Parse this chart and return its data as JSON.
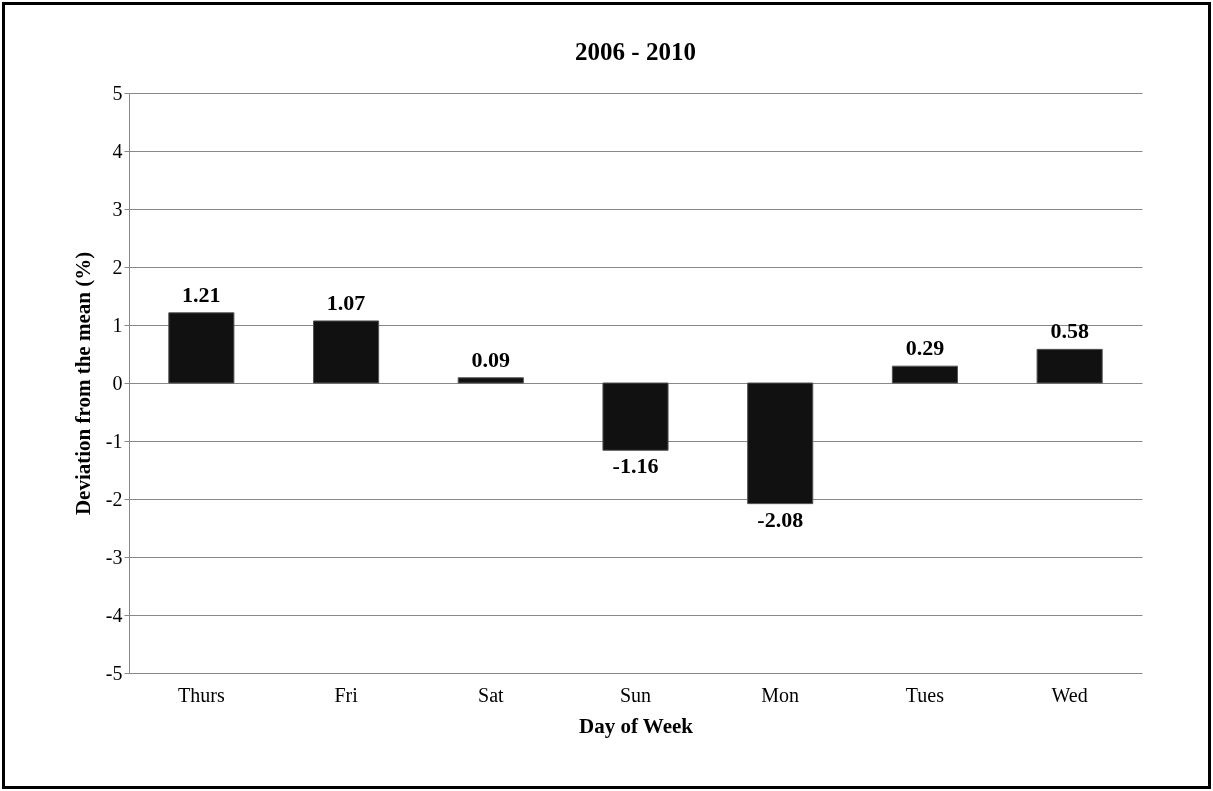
{
  "chart_data": {
    "type": "bar",
    "title": "2006 - 2010",
    "xlabel": "Day of Week",
    "ylabel": "Deviation from the mean (%)",
    "categories": [
      "Thurs",
      "Fri",
      "Sat",
      "Sun",
      "Mon",
      "Tues",
      "Wed"
    ],
    "values": [
      1.21,
      1.07,
      0.09,
      -1.16,
      -2.08,
      0.29,
      0.58
    ],
    "color": "#111111",
    "ylim": [
      -5,
      5
    ],
    "yticks": [
      -5,
      -4,
      -3,
      -2,
      -1,
      0,
      1,
      2,
      3,
      4,
      5
    ],
    "grid": "y",
    "data_labels": true
  }
}
